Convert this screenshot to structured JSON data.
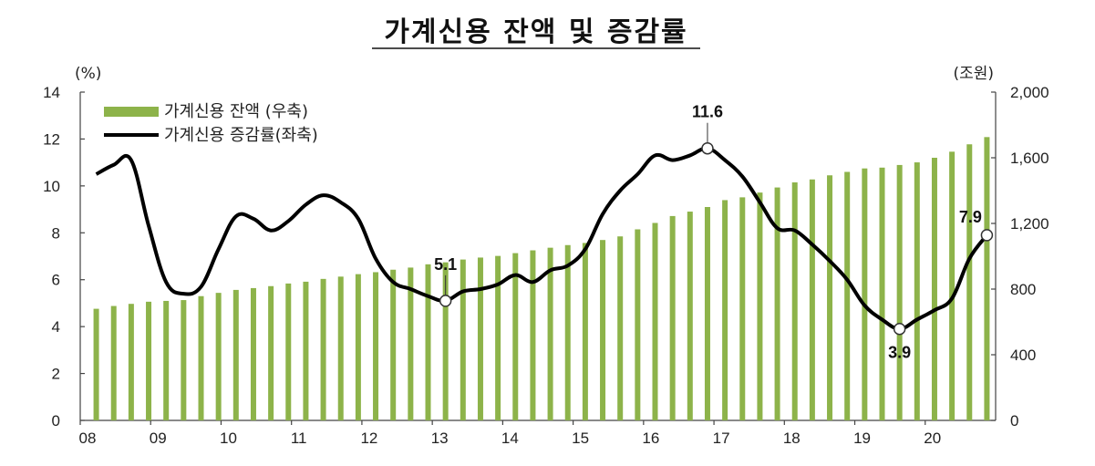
{
  "chart_data": {
    "type": "bar",
    "title": "가계신용 잔액 및 증감률",
    "left_unit": "(%)",
    "right_unit": "(조원)",
    "left_axis": {
      "ylim": [
        0,
        14
      ],
      "ticks": [
        "0",
        "2",
        "4",
        "6",
        "8",
        "10",
        "12",
        "14"
      ]
    },
    "right_axis": {
      "ylim": [
        0,
        2000
      ],
      "ticks": [
        "0",
        "400",
        "800",
        "1,200",
        "1,600",
        "2,000"
      ]
    },
    "x_ticks": [
      "08",
      "09",
      "10",
      "11",
      "12",
      "13",
      "14",
      "15",
      "16",
      "17",
      "18",
      "19",
      "20"
    ],
    "x_start_year": 2008,
    "legend": {
      "position": "top-left"
    },
    "colors": {
      "bar": "#8db34a",
      "line": "#000000"
    },
    "series": [
      {
        "name": "가계신용 잔액 (우축)",
        "type": "bar",
        "axis": "right",
        "values": [
          680,
          697,
          710,
          723,
          728,
          733,
          757,
          777,
          795,
          806,
          818,
          834,
          845,
          862,
          876,
          891,
          903,
          918,
          931,
          951,
          963,
          980,
          992,
          1002,
          1019,
          1036,
          1052,
          1068,
          1081,
          1099,
          1121,
          1164,
          1203,
          1245,
          1272,
          1300,
          1342,
          1359,
          1388,
          1419,
          1450,
          1468,
          1493,
          1514,
          1535,
          1540,
          1556,
          1572,
          1600,
          1637,
          1682,
          1726
        ]
      },
      {
        "name": "가계신용 증감률(좌축)",
        "type": "line",
        "axis": "left",
        "values": [
          10.5,
          10.9,
          11.1,
          8.3,
          5.9,
          5.4,
          5.7,
          7.3,
          8.7,
          8.6,
          8.1,
          8.5,
          9.2,
          9.6,
          9.3,
          8.6,
          6.9,
          5.9,
          5.6,
          5.3,
          5.1,
          5.5,
          5.6,
          5.8,
          6.2,
          5.9,
          6.4,
          6.6,
          7.3,
          8.8,
          9.8,
          10.5,
          11.3,
          11.1,
          11.3,
          11.6,
          11.1,
          10.4,
          9.3,
          8.2,
          8.1,
          7.5,
          6.8,
          6.0,
          4.9,
          4.3,
          3.9,
          4.3,
          4.7,
          5.2,
          6.9,
          7.9
        ]
      }
    ],
    "annotations": [
      {
        "index": 20,
        "label": "5.1",
        "position": "above"
      },
      {
        "index": 35,
        "label": "11.6",
        "position": "above"
      },
      {
        "index": 46,
        "label": "3.9",
        "position": "below"
      },
      {
        "index": 51,
        "label": "7.9",
        "position": "above-left"
      }
    ]
  }
}
